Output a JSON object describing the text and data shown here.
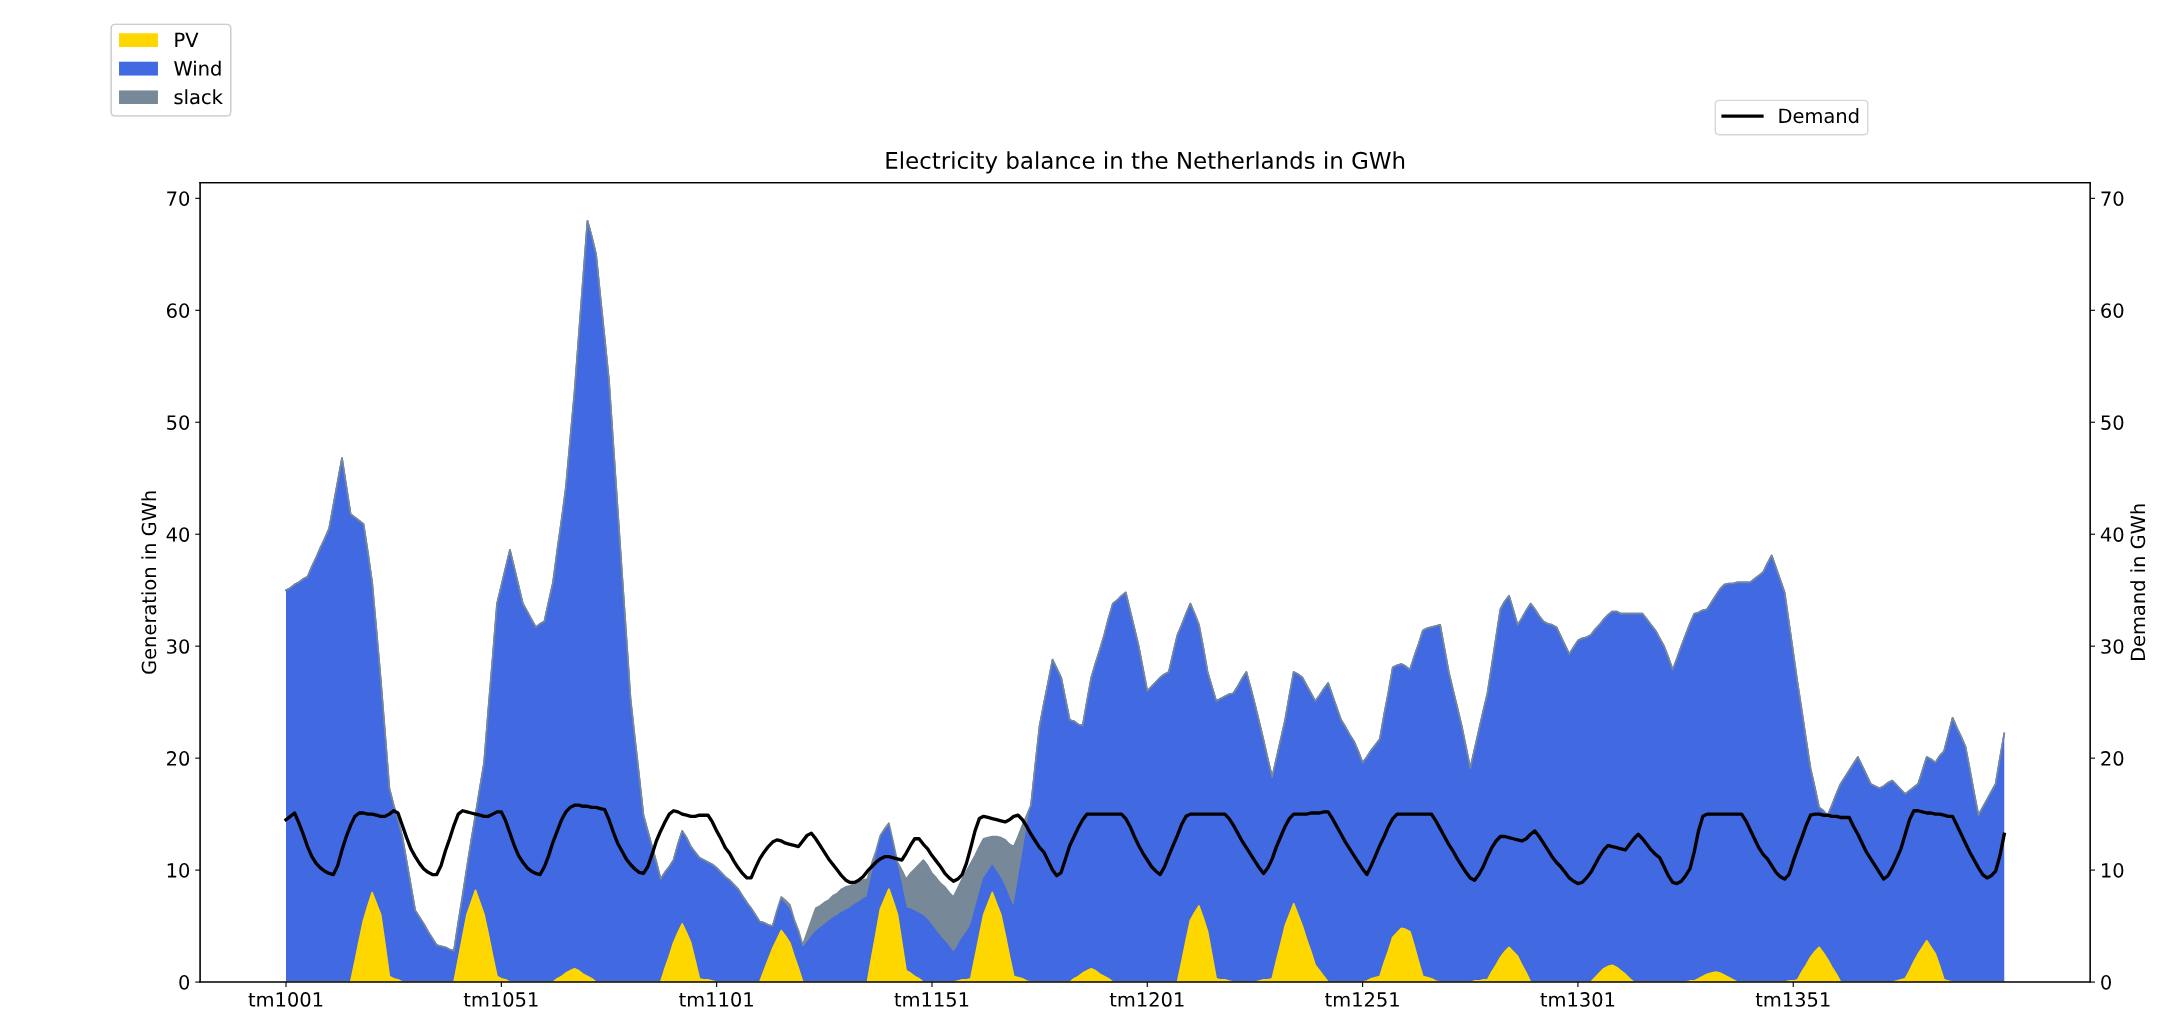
{
  "chart_data": {
    "type": "area",
    "title": "Electricity balance in the Netherlands in GWh",
    "ylabel": "Generation in GWh",
    "y2label": "Demand in GWh",
    "stacked": true,
    "categories": [
      "tm1001",
      null,
      null,
      null,
      null,
      null,
      null,
      null,
      null,
      null,
      null,
      null,
      null,
      null,
      null,
      null,
      null,
      null,
      null,
      null,
      null,
      null,
      null,
      null,
      null,
      null,
      null,
      null,
      null,
      null,
      null,
      null,
      null,
      null,
      null,
      null,
      null,
      null,
      null,
      null,
      null,
      null,
      null,
      null,
      null,
      null,
      null,
      null,
      null,
      null,
      "tm1051",
      null,
      null,
      null,
      null,
      null,
      null,
      null,
      null,
      null,
      null,
      null,
      null,
      null,
      null,
      null,
      null,
      null,
      null,
      null,
      null,
      null,
      null,
      null,
      null,
      null,
      null,
      null,
      null,
      null,
      null,
      null,
      null,
      null,
      null,
      null,
      null,
      null,
      null,
      null,
      null,
      null,
      null,
      null,
      null,
      null,
      null,
      null,
      null,
      null,
      "tm1101",
      null,
      null,
      null,
      null,
      null,
      null,
      null,
      null,
      null,
      null,
      null,
      null,
      null,
      null,
      null,
      null,
      null,
      null,
      null,
      null,
      null,
      null,
      null,
      null,
      null,
      null,
      null,
      null,
      null,
      null,
      null,
      null,
      null,
      null,
      null,
      null,
      null,
      null,
      null,
      null,
      null,
      null,
      null,
      null,
      null,
      null,
      null,
      null,
      null,
      "tm1151",
      null,
      null,
      null,
      null,
      null,
      null,
      null,
      null,
      null,
      null,
      null,
      null,
      null,
      null,
      null,
      null,
      null,
      null,
      null,
      null,
      null,
      null,
      null,
      null,
      null,
      null,
      null,
      null,
      null,
      null,
      null,
      null,
      null,
      null,
      null,
      null,
      null,
      null,
      null,
      null,
      null,
      null,
      null,
      null,
      null,
      null,
      null,
      null,
      null,
      "tm1201",
      null,
      null,
      null,
      null,
      null,
      null,
      null,
      null,
      null,
      null,
      null,
      null,
      null,
      null,
      null,
      null,
      null,
      null,
      null,
      null,
      null,
      null,
      null,
      null,
      null,
      null,
      null,
      null,
      null,
      null,
      null,
      null,
      null,
      null,
      null,
      null,
      null,
      null,
      null,
      null,
      null,
      null,
      null,
      null,
      null,
      null,
      null,
      null,
      null,
      "tm1251",
      null,
      null,
      null,
      null,
      null,
      null,
      null,
      null,
      null,
      null,
      null,
      null,
      null,
      null,
      null,
      null,
      null,
      null,
      null,
      null,
      null,
      null,
      null,
      null,
      null,
      null,
      null,
      null,
      null,
      null,
      null,
      null,
      null,
      null,
      null,
      null,
      null,
      null,
      null,
      null,
      null,
      null,
      null,
      null,
      null,
      null,
      null,
      null,
      null,
      "tm1301",
      null,
      null,
      null,
      null,
      null,
      null,
      null,
      null,
      null,
      null,
      null,
      null,
      null,
      null,
      null,
      null,
      null,
      null,
      null,
      null,
      null,
      null,
      null,
      null,
      null,
      null,
      null,
      null,
      null,
      null,
      null,
      null,
      null,
      null,
      null,
      null,
      null,
      null,
      null,
      null,
      null,
      null,
      null,
      null,
      null,
      null,
      null,
      null,
      null,
      "tm1351",
      null,
      null,
      null,
      null,
      null,
      null,
      null,
      null,
      null,
      null,
      null,
      null,
      null,
      null,
      null,
      null,
      null,
      null,
      null,
      null,
      null,
      null,
      null,
      null,
      null,
      null,
      null,
      null,
      null,
      null,
      null,
      null,
      null,
      null,
      null,
      null,
      null,
      null,
      null,
      null,
      null,
      null,
      null,
      null,
      null,
      null,
      null,
      null,
      null
    ],
    "series": [
      {
        "name": "PV",
        "color": "#ffd700",
        "values": [
          0,
          0,
          0,
          0,
          0,
          0,
          0,
          0,
          0,
          0,
          0,
          0,
          0,
          0,
          0,
          0,
          1.8,
          3.7,
          5.5,
          6.8,
          8.0,
          7.0,
          6.0,
          3.3,
          0.5,
          0.3,
          0.2,
          0,
          0,
          0,
          0,
          0,
          0,
          0,
          0,
          0,
          0,
          0,
          0,
          0,
          2.0,
          4.0,
          6.0,
          7.1,
          8.2,
          7.1,
          6.0,
          4.2,
          2.3,
          0.5,
          0.3,
          0.2,
          0,
          0,
          0,
          0,
          0,
          0,
          0,
          0,
          0,
          0,
          0,
          0.3,
          0.5,
          0.8,
          1.0,
          1.2,
          1.0,
          0.7,
          0.5,
          0.3,
          0,
          0,
          0,
          0,
          0,
          0,
          0,
          0,
          0,
          0,
          0,
          0,
          0,
          0,
          0,
          0,
          1.2,
          2.3,
          3.5,
          4.4,
          5.2,
          4.4,
          3.5,
          1.9,
          0.3,
          0.2,
          0.2,
          0.1,
          0,
          0,
          0,
          0,
          0,
          0,
          0,
          0,
          0,
          0,
          0,
          1.0,
          2.0,
          3.0,
          3.8,
          4.6,
          4.1,
          3.5,
          2.3,
          1.2,
          0,
          0,
          0,
          0,
          0,
          0,
          0,
          0,
          0,
          0,
          0,
          0,
          0,
          0,
          0,
          0,
          2.2,
          4.3,
          6.5,
          7.4,
          8.3,
          7.2,
          6.0,
          3.5,
          1.0,
          0.8,
          0.5,
          0.3,
          0,
          0,
          0,
          0,
          0,
          0,
          0,
          0,
          0.1,
          0.2,
          0.2,
          0.3,
          2.2,
          4.1,
          6.0,
          7.0,
          8.0,
          7.0,
          6.0,
          4.2,
          2.3,
          0.5,
          0.4,
          0.3,
          0.1,
          0,
          0,
          0,
          0,
          0,
          0,
          0,
          0,
          0,
          0,
          0.3,
          0.5,
          0.8,
          1.0,
          1.2,
          1.0,
          0.7,
          0.5,
          0.3,
          0,
          0,
          0,
          0,
          0,
          0,
          0,
          0,
          0,
          0,
          0,
          0,
          0,
          0,
          0,
          0,
          1.8,
          3.7,
          5.5,
          6.2,
          6.8,
          5.7,
          4.5,
          2.4,
          0.3,
          0.2,
          0.2,
          0.1,
          0,
          0,
          0,
          0,
          0,
          0,
          0.1,
          0.2,
          0.2,
          0.3,
          1.9,
          3.4,
          5.0,
          6.0,
          7.0,
          6.0,
          5.0,
          3.8,
          2.7,
          1.5,
          1.0,
          0.5,
          0,
          0,
          0,
          0,
          0,
          0,
          0,
          0,
          0,
          0.1,
          0.3,
          0.4,
          0.5,
          1.7,
          2.8,
          4.0,
          4.4,
          4.8,
          4.7,
          4.5,
          3.2,
          1.8,
          0.5,
          0.4,
          0.3,
          0.1,
          0,
          0,
          0,
          0,
          0,
          0,
          0,
          0,
          0.1,
          0.1,
          0.2,
          0.2,
          0.9,
          1.5,
          2.2,
          2.7,
          3.1,
          2.7,
          2.3,
          1.5,
          0.8,
          0,
          0,
          0,
          0,
          0,
          0,
          0,
          0,
          0,
          0,
          0,
          0,
          0,
          0,
          0,
          0.4,
          0.8,
          1.2,
          1.4,
          1.5,
          1.3,
          1.0,
          0.7,
          0.3,
          0,
          0,
          0,
          0,
          0,
          0,
          0,
          0,
          0,
          0,
          0,
          0,
          0,
          0.1,
          0.1,
          0.3,
          0.5,
          0.7,
          0.8,
          0.9,
          0.8,
          0.6,
          0.4,
          0.2,
          0,
          0,
          0,
          0,
          0,
          0,
          0,
          0,
          0,
          0,
          0,
          0,
          0.1,
          0.1,
          0.2,
          0.9,
          1.5,
          2.2,
          2.7,
          3.1,
          2.6,
          2.0,
          1.3,
          0.7,
          0,
          0,
          0,
          0,
          0,
          0,
          0,
          0,
          0,
          0,
          0,
          0,
          0,
          0.1,
          0.2,
          0.3,
          1.0,
          1.8,
          2.5,
          3.1,
          3.7,
          3.1,
          2.5,
          1.4,
          0.2,
          0.1,
          0,
          0,
          0,
          0,
          0,
          0,
          0,
          0,
          0,
          0,
          0,
          0,
          0
        ]
      },
      {
        "name": "Wind",
        "color": "#4169e1",
        "values": [
          35.0,
          35.2,
          35.5,
          35.7,
          36.0,
          36.2,
          37.1,
          37.9,
          38.8,
          39.6,
          40.5,
          42.6,
          44.7,
          46.8,
          44.3,
          41.8,
          39.7,
          37.5,
          35.4,
          31.6,
          27.7,
          24.4,
          21.0,
          18.9,
          16.8,
          15.5,
          14.3,
          13.0,
          10.8,
          8.6,
          6.4,
          5.8,
          5.2,
          4.5,
          3.9,
          3.3,
          3.2,
          3.1,
          2.9,
          2.8,
          3.3,
          3.7,
          4.2,
          5.5,
          6.7,
          10.2,
          13.6,
          20.2,
          26.7,
          33.3,
          35.1,
          36.8,
          38.6,
          37.0,
          35.4,
          33.8,
          33.1,
          32.4,
          31.7,
          32.0,
          32.2,
          34.0,
          35.7,
          38.3,
          40.8,
          43.4,
          47.5,
          51.5,
          56.8,
          62.2,
          67.5,
          66.3,
          65.0,
          61.2,
          57.5,
          53.7,
          48.0,
          42.3,
          36.6,
          31.0,
          25.3,
          21.8,
          18.4,
          14.9,
          13.5,
          12.1,
          10.7,
          9.2,
          8.6,
          8.0,
          7.4,
          7.9,
          8.3,
          8.5,
          8.6,
          9.7,
          10.8,
          10.7,
          10.5,
          10.4,
          10.2,
          9.8,
          9.4,
          9.1,
          8.7,
          8.3,
          7.7,
          7.1,
          6.6,
          6.0,
          5.4,
          4.3,
          3.1,
          2.0,
          2.4,
          2.7,
          2.8,
          2.9,
          2.9,
          3.0,
          3.0,
          3.5,
          4.0,
          4.5,
          4.8,
          5.1,
          5.4,
          5.7,
          5.9,
          6.2,
          6.4,
          6.6,
          6.9,
          7.1,
          7.4,
          7.6,
          7.2,
          6.7,
          6.3,
          6.0,
          5.6,
          4.9,
          4.2,
          4.9,
          5.6,
          5.7,
          5.8,
          5.8,
          5.9,
          5.5,
          5.0,
          4.5,
          4.0,
          3.6,
          3.1,
          2.6,
          3.1,
          3.7,
          4.2,
          4.7,
          4.2,
          3.7,
          3.2,
          2.8,
          2.4,
          2.8,
          3.2,
          4.2,
          5.1,
          6.1,
          8.5,
          10.9,
          13.4,
          15.8,
          19.4,
          22.9,
          24.9,
          26.8,
          28.8,
          28.0,
          27.2,
          25.3,
          23.4,
          23.0,
          22.5,
          22.1,
          24.1,
          26.0,
          27.5,
          29.0,
          30.5,
          32.2,
          33.8,
          34.1,
          34.5,
          34.8,
          33.2,
          31.6,
          30.0,
          28.0,
          26.0,
          26.4,
          26.8,
          27.2,
          27.5,
          27.7,
          29.4,
          31.0,
          30.1,
          29.2,
          28.3,
          26.7,
          25.1,
          24.2,
          23.2,
          24.0,
          24.8,
          25.1,
          25.3,
          25.6,
          25.8,
          26.4,
          27.1,
          27.7,
          26.3,
          24.8,
          23.1,
          21.4,
          19.7,
          18.0,
          18.1,
          18.3,
          18.4,
          19.6,
          20.7,
          21.5,
          22.2,
          22.7,
          23.1,
          23.6,
          24.6,
          25.7,
          26.7,
          25.6,
          24.5,
          23.4,
          22.8,
          22.1,
          21.5,
          20.6,
          19.6,
          20.0,
          20.4,
          20.8,
          21.2,
          22.2,
          23.1,
          24.1,
          23.9,
          23.6,
          23.5,
          23.4,
          25.9,
          28.4,
          30.9,
          31.2,
          31.4,
          31.7,
          31.9,
          29.8,
          27.7,
          26.1,
          24.5,
          22.9,
          21.0,
          19.1,
          20.7,
          22.4,
          24.0,
          25.6,
          27.4,
          29.3,
          31.1,
          31.3,
          31.4,
          30.5,
          29.6,
          31.0,
          32.4,
          33.8,
          33.3,
          32.7,
          32.2,
          32.0,
          31.9,
          31.7,
          30.9,
          30.1,
          29.3,
          29.9,
          30.5,
          30.7,
          30.8,
          31.0,
          31.1,
          31.1,
          31.2,
          31.4,
          31.6,
          31.8,
          31.9,
          32.2,
          32.6,
          32.9,
          32.9,
          32.9,
          32.4,
          31.9,
          31.4,
          30.7,
          30.0,
          29.0,
          27.9,
          28.9,
          30.0,
          31.0,
          31.9,
          32.8,
          32.7,
          32.7,
          32.6,
          33.1,
          33.6,
          34.3,
          34.9,
          35.2,
          35.4,
          35.7,
          35.7,
          35.7,
          35.7,
          36.0,
          36.3,
          36.6,
          37.4,
          38.1,
          37.0,
          35.9,
          34.8,
          32.0,
          29.3,
          26.5,
          23.3,
          20.1,
          16.9,
          14.7,
          12.5,
          12.7,
          12.9,
          14.5,
          16.1,
          17.7,
          18.3,
          18.9,
          19.5,
          20.1,
          19.3,
          18.5,
          17.7,
          17.5,
          17.3,
          17.5,
          17.8,
          18.0,
          17.5,
          17.0,
          16.5,
          16.1,
          15.6,
          15.2,
          15.8,
          16.4,
          16.8,
          17.1,
          18.8,
          20.4,
          22.0,
          23.6,
          22.7,
          21.9,
          21.0,
          19.0,
          16.9,
          14.9,
          15.6,
          16.3,
          17.0,
          17.7,
          20.0,
          22.2
        ]
      },
      {
        "name": "slack",
        "color": "#778899",
        "values": [
          0,
          0,
          0,
          0,
          0,
          0,
          0,
          0,
          0,
          0,
          0,
          0,
          0,
          0,
          0,
          0,
          0,
          0,
          0,
          0,
          0,
          0,
          0,
          0,
          0,
          0,
          0,
          0,
          0,
          0,
          0,
          0,
          0,
          0,
          0,
          0,
          0,
          0,
          0,
          0,
          0,
          0,
          0,
          0,
          0,
          0,
          0,
          0,
          0,
          0,
          0,
          0,
          0,
          0,
          0,
          0,
          0,
          0,
          0,
          0,
          0,
          0,
          0,
          0,
          0,
          0,
          0,
          0,
          0,
          0,
          0,
          0,
          0,
          0,
          0,
          0,
          0,
          0,
          0,
          0,
          0,
          0,
          0,
          0,
          0,
          0,
          0,
          0,
          0,
          0,
          0,
          0,
          0,
          0,
          0,
          0,
          0,
          0,
          0,
          0,
          0,
          0,
          0,
          0,
          0,
          0,
          0,
          0,
          0,
          0,
          0,
          0,
          0,
          0,
          0.2,
          0.3,
          0.4,
          0.5,
          0.4,
          0.4,
          0.3,
          0.9,
          1.5,
          2.1,
          2.0,
          2.0,
          1.9,
          2.0,
          2.0,
          2.1,
          2.1,
          2.0,
          1.9,
          1.8,
          1.7,
          1.6,
          1.2,
          0.7,
          0.3,
          0.3,
          0.3,
          0.4,
          0.5,
          1.6,
          2.6,
          3.2,
          3.8,
          4.4,
          5.0,
          4.9,
          4.7,
          4.8,
          4.8,
          4.9,
          4.9,
          5.0,
          5.2,
          5.3,
          5.5,
          5.6,
          4.9,
          4.3,
          3.6,
          3.1,
          2.6,
          3.2,
          3.7,
          4.3,
          4.9,
          5.5,
          4.1,
          2.8,
          1.4,
          0,
          0,
          0,
          0,
          0,
          0,
          0,
          0,
          0,
          0,
          0,
          0,
          0,
          0,
          0,
          0,
          0,
          0,
          0,
          0,
          0,
          0,
          0,
          0,
          0,
          0,
          0,
          0,
          0,
          0,
          0,
          0,
          0,
          0,
          0,
          0,
          0,
          0,
          0,
          0,
          0,
          0,
          0,
          0,
          0,
          0,
          0,
          0,
          0,
          0,
          0,
          0,
          0,
          0,
          0,
          0,
          0,
          0,
          0,
          0,
          0,
          0,
          0,
          0,
          0,
          0,
          0,
          0,
          0,
          0,
          0,
          0,
          0,
          0,
          0,
          0,
          0,
          0,
          0,
          0,
          0,
          0,
          0,
          0,
          0,
          0,
          0,
          0,
          0,
          0,
          0,
          0,
          0,
          0,
          0,
          0,
          0,
          0,
          0,
          0,
          0,
          0,
          0,
          0,
          0,
          0,
          0,
          0,
          0,
          0,
          0,
          0,
          0,
          0,
          0,
          0,
          0,
          0,
          0,
          0,
          0,
          0,
          0,
          0,
          0,
          0,
          0,
          0,
          0,
          0,
          0,
          0,
          0,
          0,
          0,
          0,
          0,
          0,
          0,
          0,
          0,
          0,
          0,
          0,
          0,
          0,
          0,
          0,
          0,
          0,
          0,
          0,
          0,
          0,
          0,
          0,
          0,
          0,
          0,
          0,
          0,
          0,
          0,
          0,
          0,
          0,
          0,
          0,
          0,
          0,
          0,
          0,
          0,
          0,
          0,
          0,
          0,
          0,
          0,
          0,
          0,
          0,
          0,
          0,
          0,
          0,
          0,
          0,
          0,
          0,
          0,
          0,
          0,
          0,
          0,
          0,
          0,
          0,
          0,
          0,
          0,
          0,
          0,
          0,
          0,
          0,
          0,
          0,
          0,
          0,
          0,
          0,
          0,
          0,
          0,
          0,
          0,
          0,
          0,
          0,
          0,
          0,
          0,
          0,
          0,
          0,
          0
        ]
      },
      {
        "name": "Demand",
        "type": "line",
        "axis": "y2",
        "color": "#000000",
        "values": [
          14.5,
          14.8,
          15.1,
          14.2,
          13.2,
          12.1,
          11.2,
          10.6,
          10.2,
          9.9,
          9.7,
          9.6,
          10.4,
          11.8,
          13.0,
          14.0,
          14.8,
          15.1,
          15.1,
          15.0,
          15.0,
          14.9,
          14.8,
          14.8,
          15.0,
          15.3,
          15.1,
          14.0,
          12.9,
          11.9,
          11.2,
          10.6,
          10.1,
          9.8,
          9.6,
          9.6,
          10.4,
          11.7,
          12.8,
          14.0,
          15.0,
          15.3,
          15.2,
          15.1,
          15.0,
          14.9,
          14.8,
          14.8,
          15.0,
          15.2,
          15.2,
          14.4,
          13.3,
          12.2,
          11.3,
          10.7,
          10.2,
          9.9,
          9.7,
          9.6,
          10.3,
          11.3,
          12.5,
          13.5,
          14.5,
          15.2,
          15.6,
          15.8,
          15.8,
          15.7,
          15.7,
          15.6,
          15.6,
          15.5,
          15.4,
          14.5,
          13.4,
          12.4,
          11.7,
          11.0,
          10.5,
          10.1,
          9.8,
          9.7,
          10.3,
          11.4,
          12.6,
          13.5,
          14.3,
          15.0,
          15.3,
          15.2,
          15.0,
          14.9,
          14.8,
          14.8,
          14.9,
          14.9,
          14.9,
          14.3,
          13.5,
          12.8,
          12.0,
          11.5,
          10.8,
          10.2,
          9.7,
          9.3,
          9.3,
          10.2,
          11.0,
          11.6,
          12.1,
          12.5,
          12.7,
          12.6,
          12.4,
          12.3,
          12.2,
          12.1,
          12.6,
          13.1,
          13.3,
          12.8,
          12.2,
          11.6,
          11.0,
          10.5,
          10.0,
          9.5,
          9.1,
          8.9,
          8.9,
          9.1,
          9.4,
          9.9,
          10.3,
          10.7,
          11.0,
          11.2,
          11.2,
          11.1,
          11.0,
          10.9,
          11.5,
          12.2,
          12.8,
          12.8,
          12.3,
          11.9,
          11.3,
          10.8,
          10.3,
          9.7,
          9.3,
          9.0,
          9.2,
          9.6,
          10.6,
          12.0,
          13.5,
          14.6,
          14.8,
          14.7,
          14.6,
          14.5,
          14.4,
          14.3,
          14.5,
          14.8,
          14.9,
          14.5,
          13.9,
          13.2,
          12.6,
          12.0,
          11.6,
          10.8,
          10.0,
          9.5,
          9.8,
          11.0,
          12.2,
          13.0,
          13.8,
          14.5,
          15.0,
          15.0,
          15.0,
          15.0,
          15.0,
          15.0,
          15.0,
          15.0,
          15.0,
          14.6,
          13.9,
          13.0,
          12.2,
          11.5,
          10.9,
          10.3,
          9.9,
          9.6,
          10.3,
          11.3,
          12.2,
          13.1,
          14.1,
          14.8,
          15.0,
          15.0,
          15.0,
          15.0,
          15.0,
          15.0,
          15.0,
          15.0,
          15.0,
          14.6,
          14.0,
          13.3,
          12.6,
          12.0,
          11.4,
          10.8,
          10.2,
          9.7,
          10.2,
          11.0,
          12.1,
          13.0,
          13.9,
          14.6,
          15.0,
          15.0,
          15.0,
          15.0,
          15.1,
          15.1,
          15.1,
          15.2,
          15.2,
          14.6,
          13.9,
          13.2,
          12.5,
          11.9,
          11.3,
          10.7,
          10.1,
          9.6,
          10.4,
          11.3,
          12.2,
          13.0,
          13.9,
          14.6,
          15.0,
          15.0,
          15.0,
          15.0,
          15.0,
          15.0,
          15.0,
          15.0,
          15.0,
          14.4,
          13.7,
          13.0,
          12.3,
          11.7,
          11.0,
          10.4,
          9.8,
          9.3,
          9.1,
          9.6,
          10.3,
          11.2,
          12.0,
          12.6,
          13.0,
          13.0,
          12.9,
          12.8,
          12.7,
          12.6,
          12.8,
          13.2,
          13.5,
          13.0,
          12.4,
          11.8,
          11.2,
          10.7,
          10.3,
          9.8,
          9.3,
          9.0,
          8.8,
          8.9,
          9.3,
          9.8,
          10.5,
          11.2,
          11.8,
          12.2,
          12.1,
          12.0,
          11.9,
          11.8,
          12.3,
          12.8,
          13.2,
          12.8,
          12.3,
          11.8,
          11.4,
          11.1,
          10.3,
          9.5,
          8.9,
          8.8,
          9.0,
          9.5,
          10.1,
          11.6,
          13.5,
          14.8,
          15.0,
          15.0,
          15.0,
          15.0,
          15.0,
          15.0,
          15.0,
          15.0,
          15.0,
          14.4,
          13.6,
          12.8,
          12.0,
          11.4,
          11.0,
          10.4,
          9.8,
          9.4,
          9.2,
          9.6,
          10.8,
          11.9,
          12.9,
          14.0,
          14.9,
          15.0,
          15.0,
          14.9,
          14.9,
          14.8,
          14.8,
          14.7,
          14.7,
          14.7,
          13.9,
          13.2,
          12.4,
          11.6,
          11.0,
          10.4,
          9.8,
          9.2,
          9.5,
          10.2,
          11.0,
          11.9,
          13.2,
          14.5,
          15.3,
          15.3,
          15.2,
          15.1,
          15.1,
          15.0,
          15.0,
          14.9,
          14.8,
          14.8,
          14.0,
          13.2,
          12.4,
          11.6,
          10.9,
          10.2,
          9.6,
          9.3,
          9.5,
          9.9,
          11.3,
          13.2
        ]
      }
    ],
    "ylim": [
      0,
      71.4
    ],
    "yticks": [
      0,
      10,
      20,
      30,
      40,
      50,
      60,
      70
    ],
    "y2lim": [
      0,
      71.4
    ],
    "y2ticks": [
      0,
      10,
      20,
      30,
      40,
      50,
      60,
      70
    ],
    "legend": "top",
    "grid": false
  }
}
